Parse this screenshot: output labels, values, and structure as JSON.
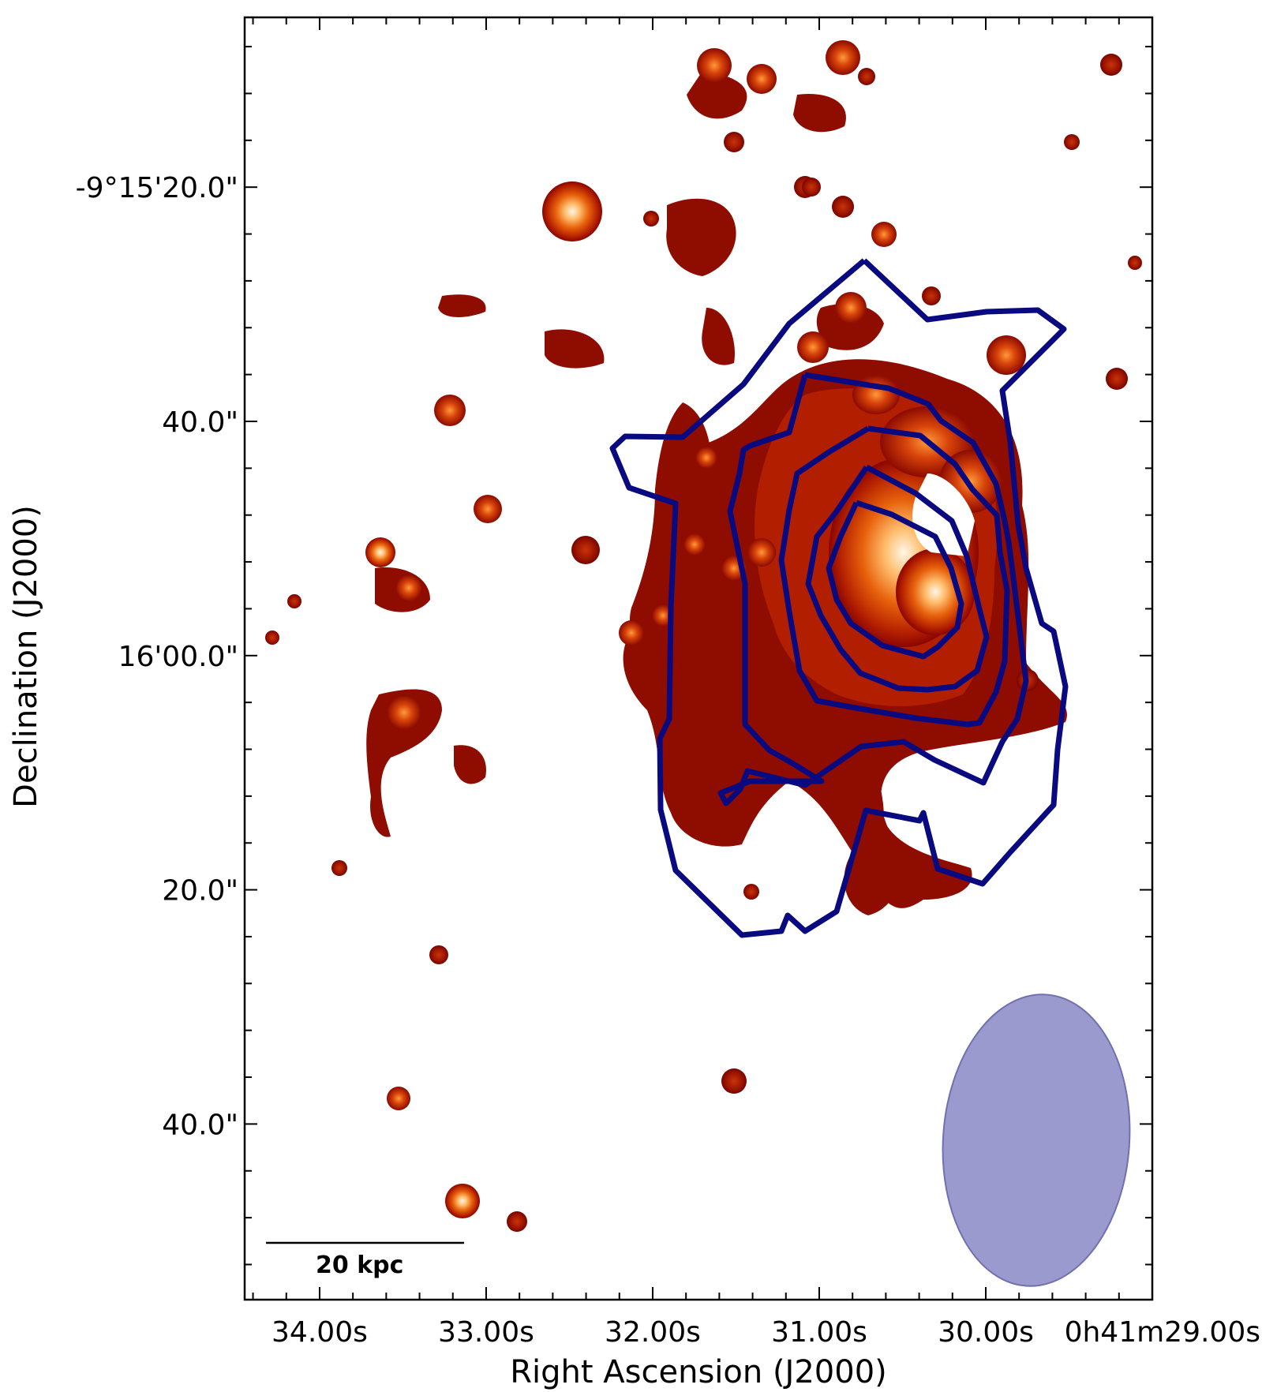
{
  "chart_data": {
    "type": "image",
    "ra_label": "Right Ascension (J2000)",
    "dec_label": "Declination (J2000)",
    "ra_ticks": [
      {
        "label": "34.00s",
        "value": 34.0
      },
      {
        "label": "33.00s",
        "value": 33.0
      },
      {
        "label": "32.00s",
        "value": 32.0
      },
      {
        "label": "31.00s",
        "value": 31.0
      },
      {
        "label": "30.00s",
        "value": 30.0
      },
      {
        "label": "0h41m29.00s",
        "value": 29.0
      }
    ],
    "dec_ticks": [
      {
        "label": "-9°15'20.0\"",
        "value": 20
      },
      {
        "label": "40.0\"",
        "value": 40
      },
      {
        "label": "16'00.0\"",
        "value": 60
      },
      {
        "label": "20.0\"",
        "value": 80
      },
      {
        "label": "40.0\"",
        "value": 100
      }
    ],
    "ra_range_s": [
      34.45,
      29.0
    ],
    "dec_range_arcsec": [
      5.5,
      115.0
    ],
    "scalebar_label": "20 kpc",
    "contour_color": "#0a0a80",
    "beam_color": "#9999cc",
    "colormap": [
      "#7a0000",
      "#b21e00",
      "#e04a00",
      "#ff8c1a",
      "#ffd9a0",
      "#ffffff"
    ]
  }
}
